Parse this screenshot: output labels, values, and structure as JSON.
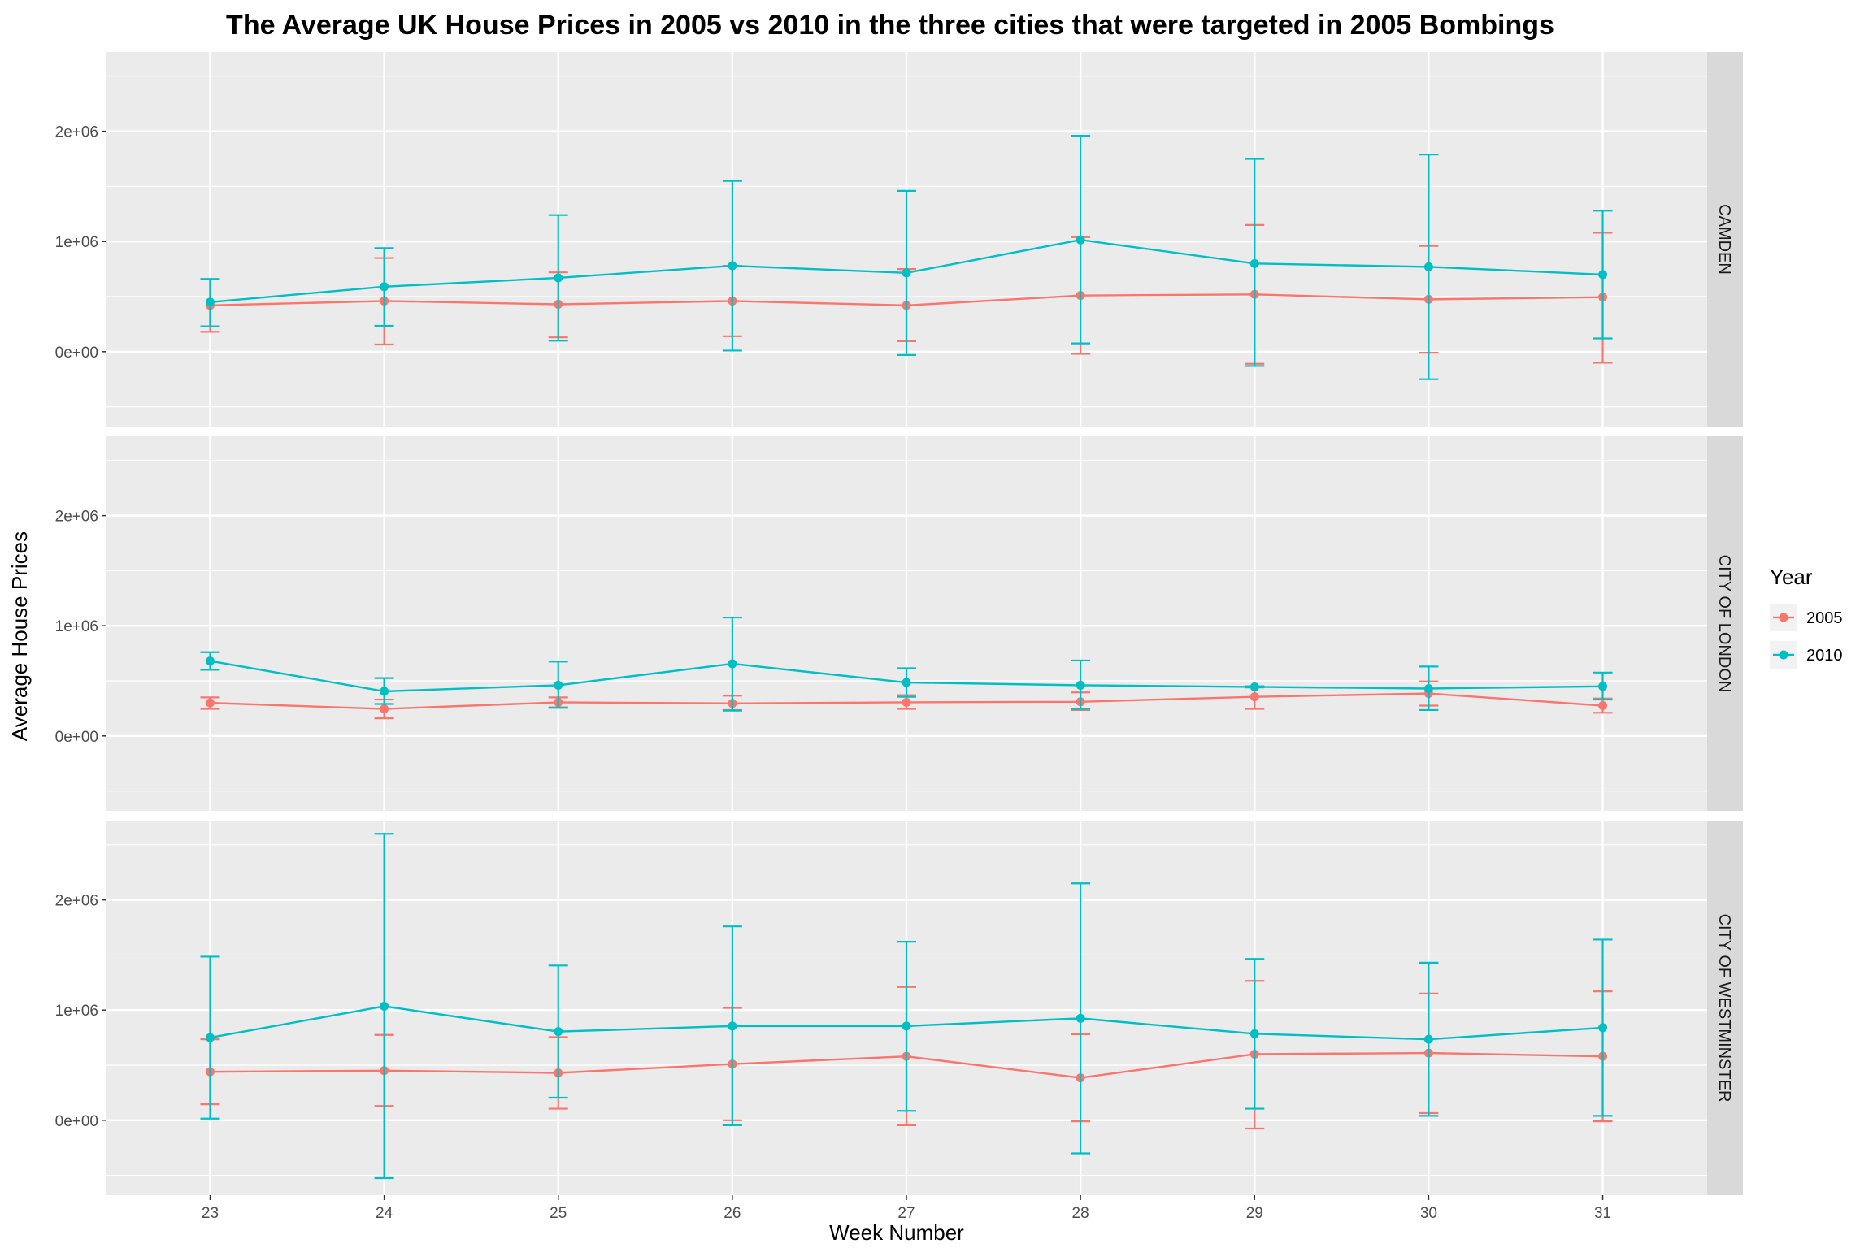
{
  "chart_data": {
    "type": "line",
    "title": "The Average UK House Prices in 2005 vs 2010 in the three cities that were targeted in 2005 Bombings",
    "xlabel": "Week Number",
    "ylabel": "Average House Prices",
    "x": [
      23,
      24,
      25,
      26,
      27,
      28,
      29,
      30,
      31
    ],
    "x_tick_labels": [
      "23",
      "24",
      "25",
      "26",
      "27",
      "28",
      "29",
      "30",
      "31"
    ],
    "ylim": [
      -680000,
      2720000
    ],
    "y_ticks": [
      0,
      1000000,
      2000000
    ],
    "y_tick_labels": [
      "0e+00",
      "1e+06",
      "2e+06"
    ],
    "grid": true,
    "error_bars": true,
    "legend": {
      "title": "Year",
      "position": "right",
      "entries": [
        {
          "label": "2005",
          "color": "#F8766D"
        },
        {
          "label": "2010",
          "color": "#00BFC4"
        }
      ]
    },
    "facets": [
      {
        "label": "CAMDEN",
        "series": [
          {
            "name": "2005",
            "color": "#F8766D",
            "values": [
              420000,
              460000,
              430000,
              460000,
              420000,
              510000,
              520000,
              475000,
              495000
            ],
            "lower": [
              180000,
              65000,
              130000,
              140000,
              95000,
              -20000,
              -110000,
              -10000,
              -100000
            ],
            "upper": [
              660000,
              850000,
              720000,
              780000,
              750000,
              1040000,
              1150000,
              960000,
              1080000
            ]
          },
          {
            "name": "2010",
            "color": "#00BFC4",
            "values": [
              450000,
              590000,
              670000,
              780000,
              715000,
              1015000,
              800000,
              770000,
              700000
            ],
            "lower": [
              230000,
              235000,
              100000,
              10000,
              -30000,
              75000,
              -130000,
              -250000,
              120000
            ],
            "upper": [
              660000,
              940000,
              1240000,
              1550000,
              1460000,
              1960000,
              1750000,
              1790000,
              1280000
            ]
          }
        ]
      },
      {
        "label": "CITY OF LONDON",
        "series": [
          {
            "name": "2005",
            "color": "#F8766D",
            "values": [
              300000,
              245000,
              305000,
              295000,
              305000,
              310000,
              355000,
              385000,
              275000
            ],
            "lower": [
              245000,
              160000,
              260000,
              235000,
              245000,
              235000,
              245000,
              275000,
              210000
            ],
            "upper": [
              350000,
              330000,
              350000,
              365000,
              370000,
              395000,
              450000,
              495000,
              340000
            ]
          },
          {
            "name": "2010",
            "color": "#00BFC4",
            "values": [
              680000,
              405000,
              460000,
              655000,
              485000,
              460000,
              445000,
              430000,
              450000
            ],
            "lower": [
              600000,
              290000,
              255000,
              230000,
              355000,
              245000,
              440000,
              235000,
              330000
            ],
            "upper": [
              760000,
              525000,
              675000,
              1075000,
              615000,
              685000,
              450000,
              630000,
              575000
            ]
          }
        ]
      },
      {
        "label": "CITY OF WESTMINSTER",
        "series": [
          {
            "name": "2005",
            "color": "#F8766D",
            "values": [
              440000,
              450000,
              430000,
              510000,
              580000,
              385000,
              600000,
              610000,
              580000
            ],
            "lower": [
              145000,
              130000,
              105000,
              0,
              -45000,
              -10000,
              -75000,
              65000,
              -10000
            ],
            "upper": [
              735000,
              775000,
              755000,
              1020000,
              1210000,
              780000,
              1265000,
              1150000,
              1170000
            ]
          },
          {
            "name": "2010",
            "color": "#00BFC4",
            "values": [
              750000,
              1035000,
              805000,
              855000,
              855000,
              925000,
              785000,
              735000,
              840000
            ],
            "lower": [
              15000,
              -525000,
              205000,
              -45000,
              85000,
              -300000,
              105000,
              40000,
              40000
            ],
            "upper": [
              1485000,
              2600000,
              1405000,
              1760000,
              1620000,
              2150000,
              1465000,
              1430000,
              1640000
            ]
          }
        ]
      }
    ]
  }
}
